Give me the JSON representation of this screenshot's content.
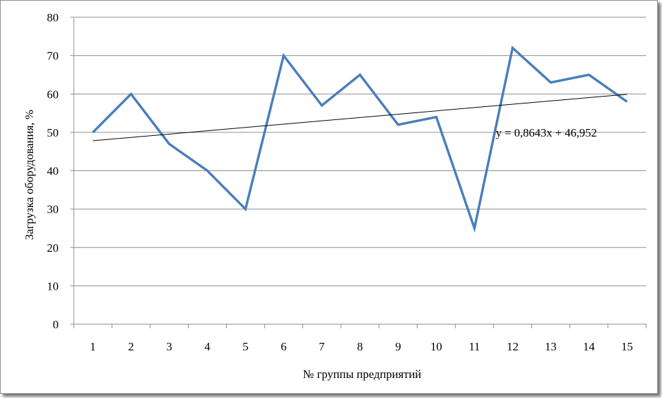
{
  "chart_data": {
    "type": "line",
    "title": "",
    "xlabel": "№ группы предприятий",
    "ylabel": "Загрузка оборудования, %",
    "categories": [
      "1",
      "2",
      "3",
      "4",
      "5",
      "6",
      "7",
      "8",
      "9",
      "10",
      "11",
      "12",
      "13",
      "14",
      "15"
    ],
    "series": [
      {
        "values": [
          50,
          60,
          47,
          40,
          30,
          70,
          57,
          65,
          52,
          54,
          25,
          72,
          63,
          65,
          58
        ],
        "color": "#4a7ebb"
      }
    ],
    "trendline": {
      "type": "linear",
      "slope": 0.8643,
      "intercept": 46.952,
      "equation": "y = 0,8643x + 46,952",
      "color": "#000000"
    },
    "ylim": [
      0,
      80
    ],
    "yticks": [
      0,
      10,
      20,
      30,
      40,
      50,
      60,
      70,
      80
    ],
    "grid": "horizontal",
    "legend": "none"
  }
}
